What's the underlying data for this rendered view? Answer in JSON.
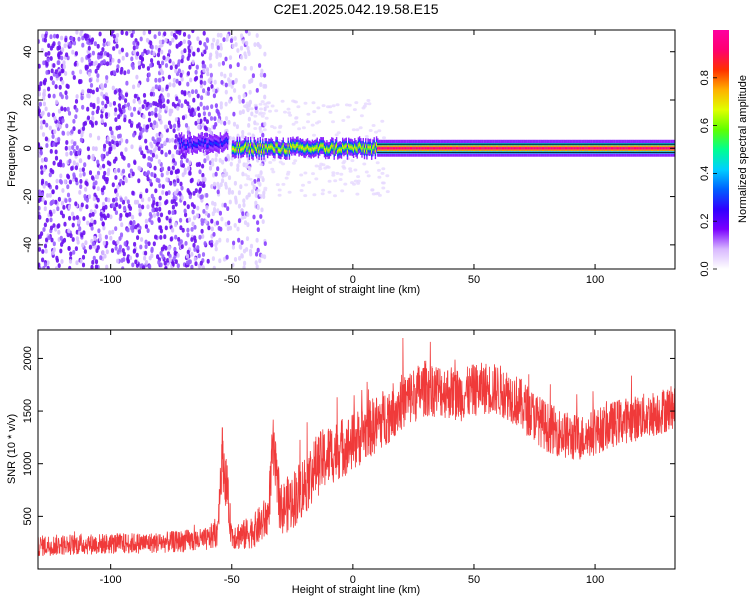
{
  "title": "C2E1.2025.042.19.58.E15",
  "chart_data": [
    {
      "type": "heatmap",
      "xlabel": "Height of straight line (km)",
      "ylabel": "Frequency (Hz)",
      "xlim": [
        -130,
        133
      ],
      "ylim": [
        -50,
        49
      ],
      "xticks": [
        -100,
        -50,
        0,
        50,
        100
      ],
      "yticks": [
        -40,
        -20,
        0,
        20,
        40
      ],
      "grid": false,
      "colorbar": {
        "label": "Normalized spectral amplitude",
        "ticks": [
          "0.0",
          "0.2",
          "0.4",
          "0.6",
          "0.8"
        ],
        "range": [
          0,
          1
        ],
        "colors": [
          "#ffffff",
          "#d8b8ff",
          "#7a00ff",
          "#3000ff",
          "#0060ff",
          "#00d0ff",
          "#00ff90",
          "#60ff00",
          "#e0ff00",
          "#ffb000",
          "#ff3000",
          "#ff0070",
          "#ff00a0"
        ]
      },
      "features": [
        {
          "x_range": [
            -130,
            -58
          ],
          "y_range": [
            -50,
            49
          ],
          "amplitude": 0.1
        },
        {
          "x_range": [
            -58,
            -36
          ],
          "y_range": [
            -50,
            49
          ],
          "amplitude": 0.05
        },
        {
          "x_range": [
            -72,
            -52
          ],
          "y_center": 2,
          "amplitude": 0.3
        },
        {
          "x_range": [
            -50,
            10
          ],
          "y_center": 0,
          "amplitude": 0.7
        },
        {
          "x_range": [
            10,
            133
          ],
          "y_center": 0,
          "amplitude": 0.95
        }
      ]
    },
    {
      "type": "line",
      "xlabel": "Height of straight line (km)",
      "ylabel": "SNR (10 * v/v)",
      "xlim": [
        -130,
        133
      ],
      "ylim": [
        0,
        2270
      ],
      "xticks": [
        -100,
        -50,
        0,
        50,
        100
      ],
      "yticks": [
        500,
        1000,
        1500,
        2000
      ],
      "grid": false,
      "series": [
        {
          "color": "#f03a3a",
          "x": [
            -130,
            -120,
            -100,
            -80,
            -60,
            -56,
            -54,
            -52,
            -50,
            -45,
            -40,
            -35,
            -33,
            -30,
            -25,
            -20,
            -15,
            -10,
            -5,
            0,
            5,
            10,
            15,
            20,
            25,
            30,
            35,
            40,
            45,
            50,
            55,
            60,
            65,
            70,
            75,
            80,
            85,
            90,
            95,
            100,
            105,
            110,
            115,
            120,
            125,
            130,
            133
          ],
          "y": [
            220,
            230,
            240,
            250,
            280,
            350,
            1100,
            750,
            320,
            320,
            380,
            500,
            1150,
            560,
            650,
            800,
            980,
            1080,
            1150,
            1200,
            1300,
            1380,
            1480,
            1580,
            1650,
            1720,
            1700,
            1680,
            1650,
            1700,
            1720,
            1700,
            1650,
            1550,
            1450,
            1350,
            1300,
            1250,
            1250,
            1300,
            1350,
            1400,
            1420,
            1450,
            1480,
            1520,
            1550
          ],
          "noise": [
            100,
            100,
            100,
            100,
            110,
            150,
            300,
            250,
            130,
            150,
            170,
            220,
            300,
            250,
            280,
            300,
            300,
            300,
            290,
            280,
            280,
            280,
            280,
            270,
            270,
            270,
            260,
            260,
            250,
            250,
            250,
            250,
            250,
            250,
            240,
            240,
            230,
            230,
            220,
            220,
            220,
            220,
            220,
            220,
            220,
            220,
            220
          ]
        }
      ]
    }
  ]
}
